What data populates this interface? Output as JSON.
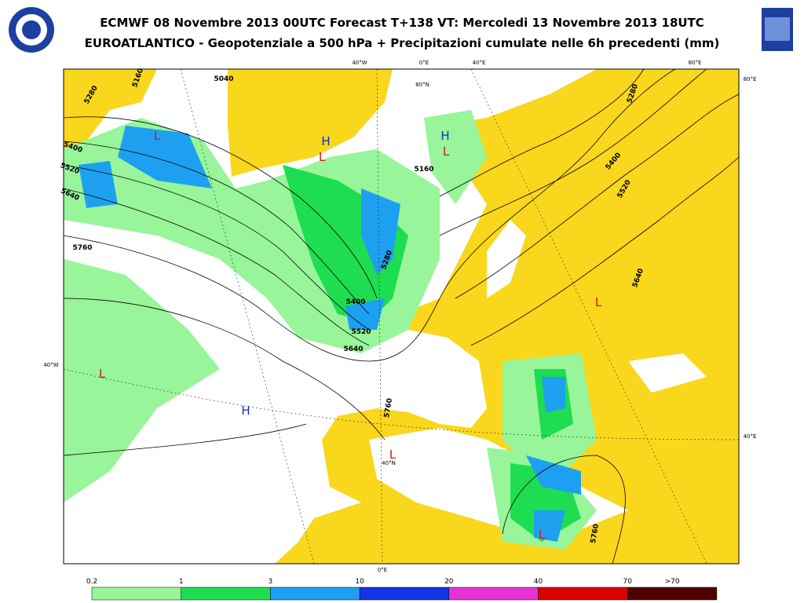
{
  "header": {
    "title": "ECMWF 08 Novembre 2013 00UTC Forecast T+138 VT: Mercoledi 13 Novembre 2013 18UTC",
    "subtitle": "EUROATLANTICO - Geopotenziale a 500 hPa + Precipitazioni cumulate nelle 6h precedenti (mm)"
  },
  "map": {
    "grid_labels": [
      "40°W",
      "0°E",
      "40°E",
      "80°E",
      "80°N",
      "80°E",
      "40°W",
      "40°E",
      "40°N",
      "0°E"
    ],
    "contour_labels": [
      "5160",
      "5040",
      "5280",
      "5400",
      "5520",
      "5640",
      "5760",
      "5160",
      "5280",
      "5400",
      "5520",
      "5640",
      "5760",
      "5280",
      "5400",
      "5520",
      "5640",
      "5760"
    ],
    "pressure_centers": [
      "L",
      "H",
      "L",
      "H",
      "L",
      "L",
      "L",
      "H",
      "L",
      "L"
    ]
  },
  "legend": {
    "labels": [
      "0.2",
      "1",
      "3",
      "10",
      "20",
      "40",
      "70",
      ">70"
    ],
    "colors": [
      "#98f59a",
      "#1edd50",
      "#1ea0f0",
      "#1432e6",
      "#e632d2",
      "#dc0000",
      "#500000"
    ]
  }
}
